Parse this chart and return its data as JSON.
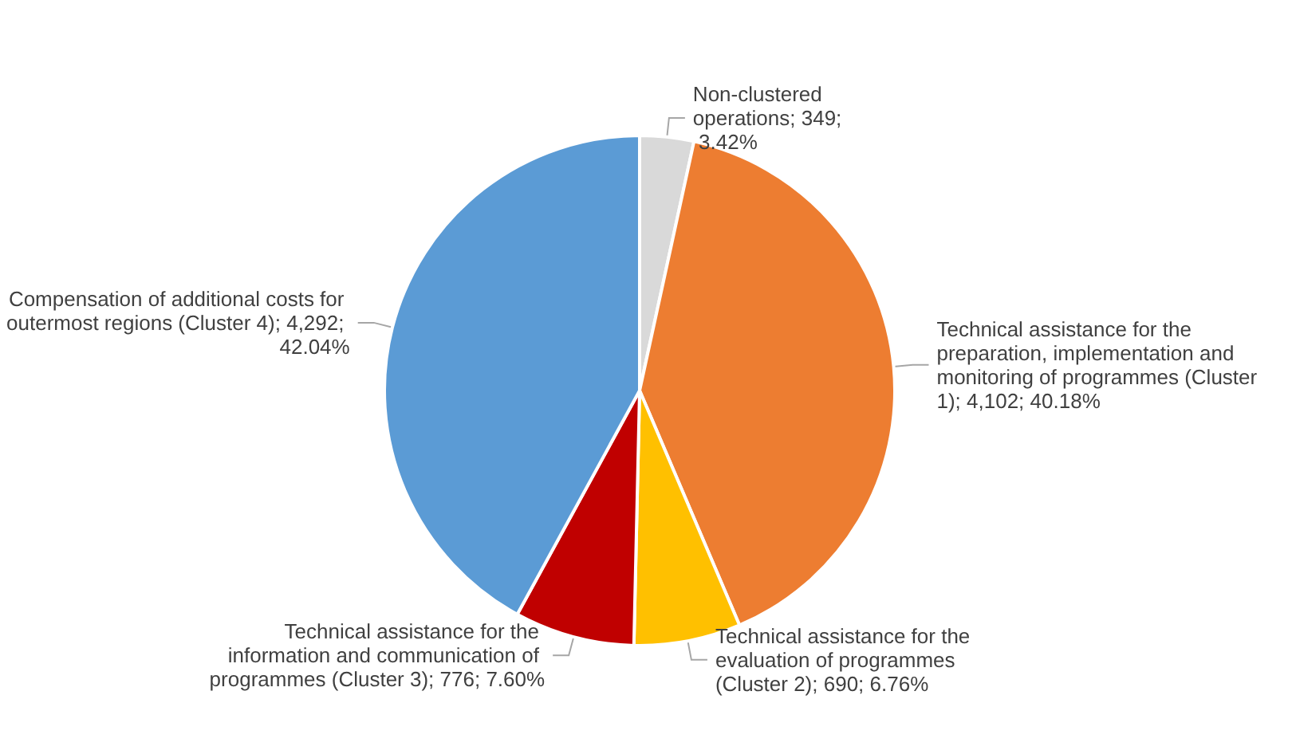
{
  "chart_data": {
    "type": "pie",
    "categories": [
      "Non-clustered operations",
      "Technical assistance for the preparation, implementation and monitoring of programmes (Cluster 1)",
      "Technical assistance for the evaluation of programmes (Cluster 2)",
      "Technical assistance for the information and communication of programmes (Cluster 3)",
      "Compensation of additional costs for outermost regions (Cluster 4)"
    ],
    "values": [
      349,
      4102,
      690,
      776,
      4292
    ],
    "value_labels": [
      "349; 3.42%",
      "4,102; 40.18%",
      "690; 6.76%",
      "776; 7.60%",
      "4,292; 42.04%"
    ],
    "colors": [
      "#d9d9d9",
      "#ed7d31",
      "#ffc000",
      "#c00000",
      "#5b9bd5"
    ],
    "legend": false
  }
}
